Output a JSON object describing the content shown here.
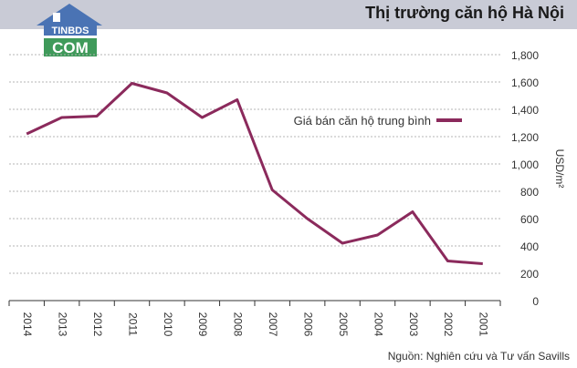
{
  "header": {
    "title": "Thị trường căn hộ Hà Nội"
  },
  "logo": {
    "top_text": "TINBDS",
    "bottom_text": "COM"
  },
  "source": "Nguồn: Nghiên cứu và Tư vấn Savills",
  "colors": {
    "line": "#8b2a5c",
    "header_bg": "#c9cbd6",
    "grid": "#b5b5b5"
  },
  "chart_data": {
    "type": "line",
    "x": [
      "2014",
      "2013",
      "2012",
      "2011",
      "2010",
      "2009",
      "2008",
      "2007",
      "2006",
      "2005",
      "2004",
      "2003",
      "2002",
      "2001"
    ],
    "series": [
      {
        "name": "Giá bán căn hộ trung bình",
        "values": [
          1220,
          1340,
          1350,
          1590,
          1520,
          1340,
          1470,
          810,
          600,
          420,
          480,
          650,
          290,
          270
        ]
      }
    ],
    "ylabel": "USD/m²",
    "ylim": [
      0,
      1800
    ],
    "yticks": [
      "0",
      "200",
      "400",
      "600",
      "800",
      "1,000",
      "1,200",
      "1,400",
      "1,600",
      "1,800"
    ],
    "grid": true,
    "legend": "top-right",
    "mirrored": true
  }
}
